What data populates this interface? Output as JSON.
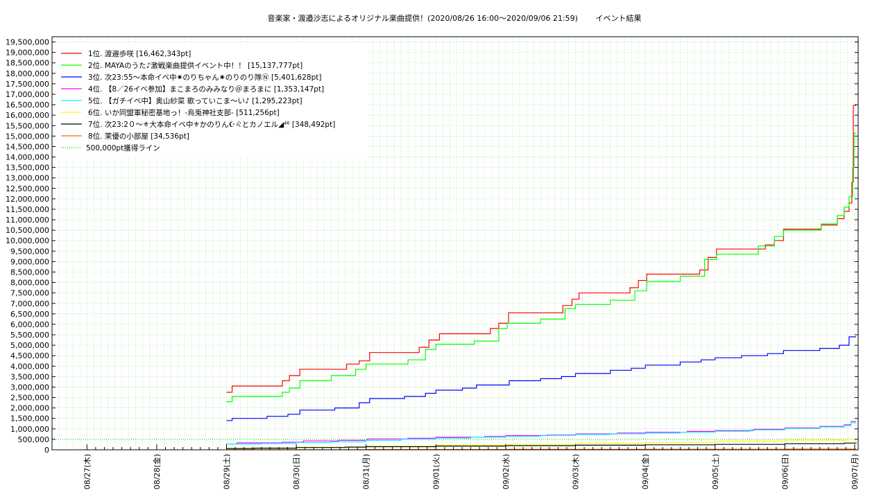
{
  "chart_data": {
    "type": "line",
    "title": "音楽家・渡邉沙志によるオリジナル楽曲提供！(2020/08/26 16:00～2020/09/06 21:59)　　 イベント結果",
    "xlabel": "",
    "ylabel": "",
    "x_categories": [
      "08/27(木)",
      "08/28(金)",
      "08/29(土)",
      "08/30(日)",
      "08/31(月)",
      "09/01(火)",
      "09/02(水)",
      "09/03(木)",
      "09/04(金)",
      "09/05(土)",
      "09/06(日)",
      "09/07(月)"
    ],
    "x_unit": "days since 08/27 00:00",
    "xlim": [
      -0.5,
      11.05
    ],
    "ylim": [
      0,
      19750000
    ],
    "y_ticks": [
      0,
      500000,
      1000000,
      1500000,
      2000000,
      2500000,
      3000000,
      3500000,
      4000000,
      4500000,
      5000000,
      5500000,
      6000000,
      6500000,
      7000000,
      7500000,
      8000000,
      8500000,
      9000000,
      9500000,
      10000000,
      10500000,
      11000000,
      11500000,
      12000000,
      12500000,
      13000000,
      13500000,
      14000000,
      14500000,
      15000000,
      15500000,
      16000000,
      16500000,
      17000000,
      17500000,
      18000000,
      18500000,
      19000000,
      19500000
    ],
    "y_tick_labels": [
      "0",
      "500,000",
      "1,000,000",
      "1,500,000",
      "2,000,000",
      "2,500,000",
      "3,000,000",
      "3,500,000",
      "4,000,000",
      "4,500,000",
      "5,000,000",
      "5,500,000",
      "6,000,000",
      "6,500,000",
      "7,000,000",
      "7,500,000",
      "8,000,000",
      "8,500,000",
      "9,000,000",
      "9,500,000",
      "10,000,000",
      "10,500,000",
      "11,000,000",
      "11,500,000",
      "12,000,000",
      "12,500,000",
      "13,000,000",
      "13,500,000",
      "14,000,000",
      "14,500,000",
      "15,000,000",
      "15,500,000",
      "16,000,000",
      "16,500,000",
      "17,000,000",
      "17,500,000",
      "18,000,000",
      "18,500,000",
      "19,000,000",
      "19,500,000"
    ],
    "grid": true,
    "legend_position": "top-left",
    "series": [
      {
        "name": "1位. 渡邉歩咲 [16,462,343pt]",
        "color": "#ff0000",
        "points": [
          [
            2.0,
            2750000
          ],
          [
            2.08,
            3050000
          ],
          [
            2.8,
            3300000
          ],
          [
            2.9,
            3550000
          ],
          [
            3.05,
            3850000
          ],
          [
            3.72,
            4100000
          ],
          [
            3.9,
            4250000
          ],
          [
            4.05,
            4650000
          ],
          [
            4.76,
            4900000
          ],
          [
            4.9,
            5250000
          ],
          [
            5.05,
            5550000
          ],
          [
            5.78,
            5800000
          ],
          [
            5.9,
            6050000
          ],
          [
            6.04,
            6550000
          ],
          [
            6.82,
            6900000
          ],
          [
            6.95,
            7200000
          ],
          [
            7.05,
            7500000
          ],
          [
            7.78,
            7750000
          ],
          [
            7.9,
            8100000
          ],
          [
            8.02,
            8400000
          ],
          [
            8.78,
            8600000
          ],
          [
            8.9,
            9200000
          ],
          [
            9.02,
            9600000
          ],
          [
            9.72,
            9800000
          ],
          [
            9.85,
            10000000
          ],
          [
            9.98,
            10550000
          ],
          [
            10.52,
            10750000
          ],
          [
            10.75,
            11050000
          ],
          [
            10.85,
            11400000
          ],
          [
            10.92,
            11800000
          ],
          [
            10.96,
            12800000
          ],
          [
            10.98,
            16462343
          ],
          [
            11.02,
            16462343
          ]
        ]
      },
      {
        "name": "2位. MAYAのうた♪激戦楽曲提供イベント中！！ [15,137,777pt]",
        "color": "#00ff00",
        "points": [
          [
            2.0,
            2300000
          ],
          [
            2.08,
            2550000
          ],
          [
            2.8,
            2750000
          ],
          [
            2.9,
            2950000
          ],
          [
            3.05,
            3300000
          ],
          [
            3.5,
            3550000
          ],
          [
            3.85,
            3850000
          ],
          [
            4.0,
            4100000
          ],
          [
            4.6,
            4300000
          ],
          [
            4.85,
            4800000
          ],
          [
            5.0,
            5050000
          ],
          [
            5.55,
            5200000
          ],
          [
            5.9,
            5800000
          ],
          [
            6.02,
            6050000
          ],
          [
            6.5,
            6250000
          ],
          [
            6.85,
            6750000
          ],
          [
            7.0,
            6950000
          ],
          [
            7.5,
            7150000
          ],
          [
            7.85,
            7600000
          ],
          [
            8.02,
            8050000
          ],
          [
            8.5,
            8300000
          ],
          [
            8.85,
            9100000
          ],
          [
            9.02,
            9350000
          ],
          [
            9.62,
            9750000
          ],
          [
            9.85,
            10200000
          ],
          [
            9.98,
            10500000
          ],
          [
            10.52,
            10800000
          ],
          [
            10.75,
            11200000
          ],
          [
            10.85,
            11600000
          ],
          [
            10.92,
            12100000
          ],
          [
            10.97,
            13500000
          ],
          [
            10.99,
            15137777
          ],
          [
            11.02,
            15137777
          ]
        ]
      },
      {
        "name": "3位. 次23:55～本命イベ中✷のりちゃん✷のりのり隊Ⓝ [5,401,628pt]",
        "color": "#0000ff",
        "points": [
          [
            2.0,
            1400000
          ],
          [
            2.08,
            1500000
          ],
          [
            2.58,
            1600000
          ],
          [
            2.88,
            1700000
          ],
          [
            3.05,
            1900000
          ],
          [
            3.55,
            2000000
          ],
          [
            3.9,
            2250000
          ],
          [
            4.05,
            2450000
          ],
          [
            4.55,
            2550000
          ],
          [
            4.85,
            2700000
          ],
          [
            5.0,
            2850000
          ],
          [
            5.38,
            2950000
          ],
          [
            5.58,
            3100000
          ],
          [
            6.05,
            3300000
          ],
          [
            6.5,
            3400000
          ],
          [
            6.8,
            3500000
          ],
          [
            7.0,
            3650000
          ],
          [
            7.5,
            3800000
          ],
          [
            7.8,
            3900000
          ],
          [
            8.0,
            4050000
          ],
          [
            8.5,
            4200000
          ],
          [
            8.8,
            4300000
          ],
          [
            9.0,
            4400000
          ],
          [
            9.38,
            4500000
          ],
          [
            9.75,
            4600000
          ],
          [
            9.98,
            4750000
          ],
          [
            10.5,
            4850000
          ],
          [
            10.78,
            5000000
          ],
          [
            10.92,
            5400000
          ],
          [
            11.02,
            5401628
          ]
        ]
      },
      {
        "name": "4位. 【8／26イベ参加】まこまろのみみなり＠まろまに [1,353,147pt]",
        "color": "#ff00ff",
        "points": [
          [
            2.0,
            280000
          ],
          [
            2.15,
            330000
          ],
          [
            2.8,
            360000
          ],
          [
            3.1,
            420000
          ],
          [
            3.6,
            450000
          ],
          [
            4.02,
            520000
          ],
          [
            4.6,
            550000
          ],
          [
            5.0,
            600000
          ],
          [
            5.7,
            640000
          ],
          [
            6.0,
            680000
          ],
          [
            6.6,
            710000
          ],
          [
            7.0,
            760000
          ],
          [
            7.6,
            800000
          ],
          [
            8.0,
            840000
          ],
          [
            8.6,
            880000
          ],
          [
            9.0,
            920000
          ],
          [
            9.55,
            980000
          ],
          [
            10.0,
            1050000
          ],
          [
            10.5,
            1120000
          ],
          [
            10.85,
            1200000
          ],
          [
            10.95,
            1353147
          ],
          [
            11.02,
            1353147
          ]
        ]
      },
      {
        "name": "5位. 【ガチイベ中】奥山紗菜 歌っていこま～い♪ [1,295,223pt]",
        "color": "#00ffff",
        "points": [
          [
            2.0,
            280000
          ],
          [
            2.5,
            300000
          ],
          [
            3.0,
            340000
          ],
          [
            3.5,
            380000
          ],
          [
            4.0,
            450000
          ],
          [
            4.5,
            500000
          ],
          [
            5.0,
            560000
          ],
          [
            5.5,
            600000
          ],
          [
            6.0,
            640000
          ],
          [
            6.5,
            690000
          ],
          [
            7.0,
            730000
          ],
          [
            7.5,
            770000
          ],
          [
            8.0,
            800000
          ],
          [
            8.5,
            840000
          ],
          [
            9.0,
            880000
          ],
          [
            9.5,
            950000
          ],
          [
            10.0,
            1020000
          ],
          [
            10.5,
            1090000
          ],
          [
            10.85,
            1150000
          ],
          [
            10.95,
            1295223
          ],
          [
            11.02,
            1295223
          ]
        ]
      },
      {
        "name": "6位. いか同盟軍秘密基地っ！-烏兎神社支部- [511,256pt]",
        "color": "#ffff00",
        "points": [
          [
            2.0,
            80000
          ],
          [
            3.0,
            120000
          ],
          [
            4.0,
            170000
          ],
          [
            5.0,
            220000
          ],
          [
            6.0,
            260000
          ],
          [
            7.0,
            300000
          ],
          [
            8.0,
            350000
          ],
          [
            9.0,
            400000
          ],
          [
            10.0,
            460000
          ],
          [
            10.9,
            500000
          ],
          [
            11.02,
            511256
          ]
        ]
      },
      {
        "name": "7位. 次23:2０～⚜大本命イベ中⚜かのりん☪♌とカノエル◢⁴⁶ [348,492pt]",
        "color": "#000000",
        "points": [
          [
            2.0,
            60000
          ],
          [
            2.4,
            80000
          ],
          [
            3.0,
            110000
          ],
          [
            3.7,
            130000
          ],
          [
            4.0,
            150000
          ],
          [
            5.0,
            180000
          ],
          [
            6.0,
            200000
          ],
          [
            7.0,
            220000
          ],
          [
            8.0,
            240000
          ],
          [
            9.0,
            260000
          ],
          [
            10.0,
            290000
          ],
          [
            10.85,
            320000
          ],
          [
            11.02,
            348492
          ]
        ]
      },
      {
        "name": "8位. 茉優の小部屋 [34,536pt]",
        "color": "#ff6600",
        "points": [
          [
            2.0,
            5000
          ],
          [
            4.0,
            12000
          ],
          [
            6.0,
            20000
          ],
          [
            8.0,
            26000
          ],
          [
            10.0,
            32000
          ],
          [
            11.02,
            34536
          ]
        ]
      }
    ],
    "reference_line": {
      "name": "500,000pt獲得ライン",
      "value": 500000,
      "color": "#00cc00"
    }
  }
}
